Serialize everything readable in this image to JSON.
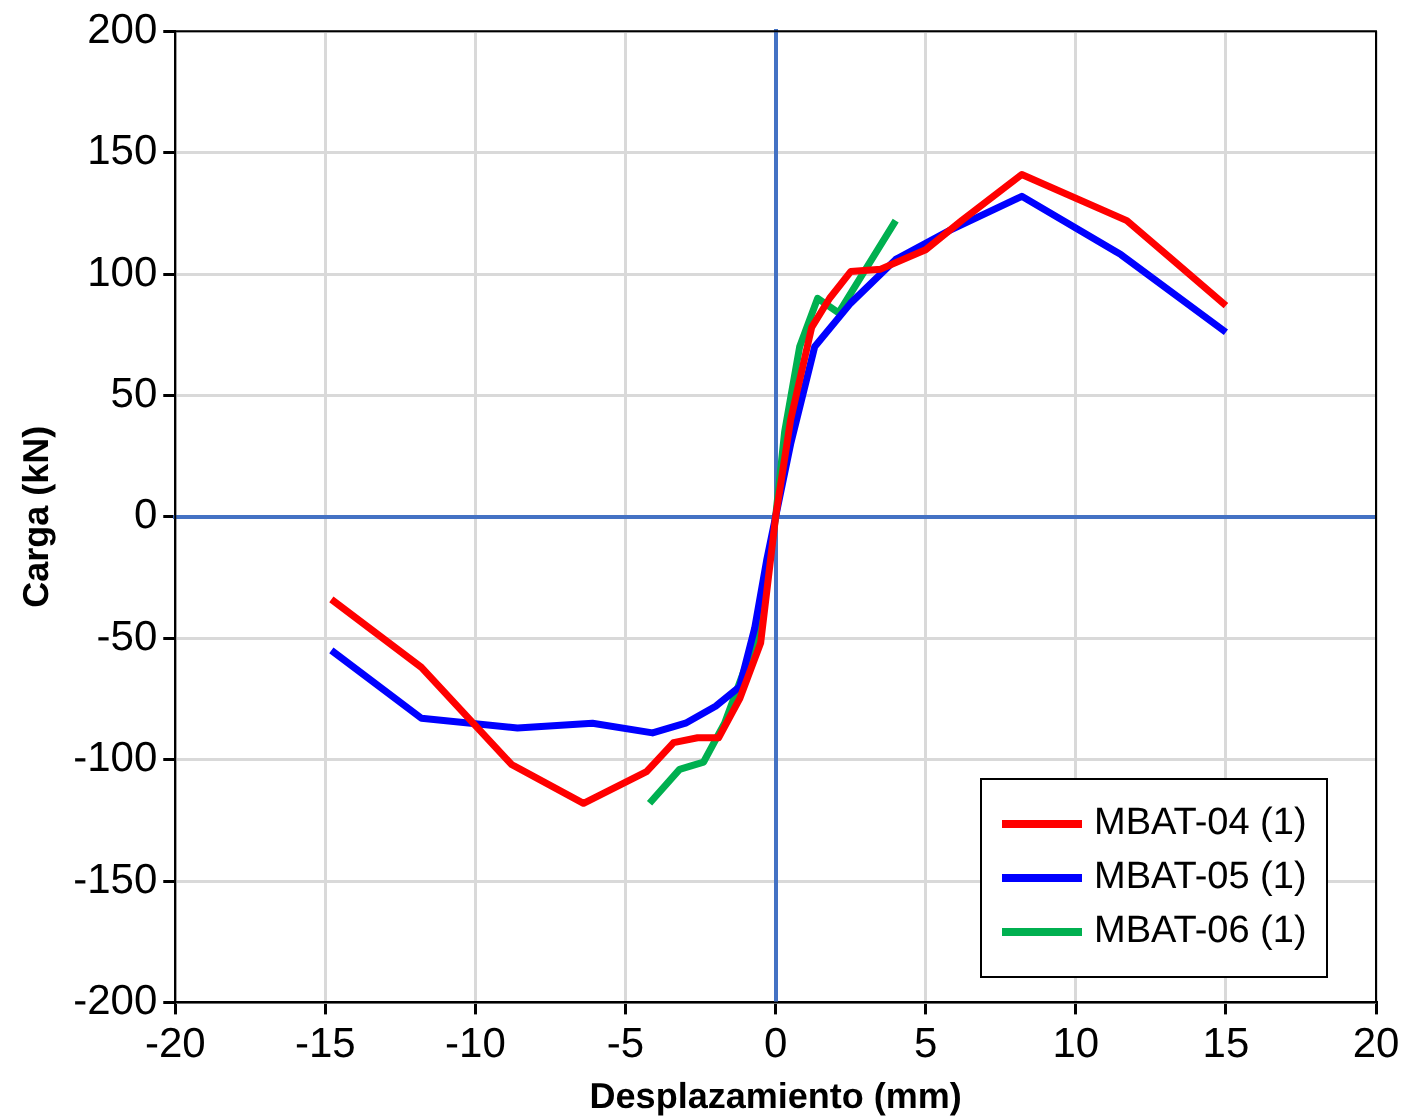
{
  "chart_data": {
    "type": "line",
    "xlabel": "Desplazamiento (mm)",
    "ylabel": "Carga (kN)",
    "xlim": [
      -20,
      20
    ],
    "xticks": [
      -20,
      -15,
      -10,
      -5,
      0,
      5,
      10,
      15,
      20
    ],
    "ylim": [
      -200,
      200
    ],
    "yticks": [
      -200,
      -150,
      -100,
      -50,
      0,
      50,
      100,
      150,
      200
    ],
    "grid": true,
    "legend": "bottom right",
    "marker": "none",
    "line_style": "solid",
    "series": [
      {
        "name": "MBAT-04 (1)",
        "color": "#ff0000",
        "x": [
          -14.8,
          -11.8,
          -8.8,
          -6.4,
          -4.3,
          -3.4,
          -2.6,
          -1.9,
          -1.2,
          -0.5,
          0,
          0.5,
          1.2,
          1.8,
          2.5,
          3.5,
          5,
          6.2,
          8.2,
          11.7,
          15
        ],
        "values": [
          -34,
          -62,
          -102,
          -118,
          -105,
          -93,
          -91,
          -91,
          -75,
          -52,
          0,
          40,
          78,
          90,
          101,
          102,
          110,
          122,
          141,
          122,
          87
        ]
      },
      {
        "name": "MBAT-05 (1)",
        "color": "#0000ff",
        "x": [
          -14.8,
          -11.8,
          -8.6,
          -6.1,
          -4.1,
          -3,
          -2,
          -1.2,
          -0.7,
          -0.3,
          0,
          0.5,
          1.3,
          2.5,
          4,
          5.8,
          8.2,
          11.5,
          15
        ],
        "values": [
          -55,
          -83,
          -87,
          -85,
          -89,
          -85,
          -78,
          -70,
          -46,
          -18,
          0,
          30,
          70,
          88,
          106,
          118,
          132,
          108,
          76
        ]
      },
      {
        "name": "MBAT-06 (1)",
        "color": "#00b050",
        "x": [
          -4.2,
          -3.2,
          -2.4,
          -1.7,
          -0.5,
          0,
          0.3,
          0.8,
          1.4,
          2.1,
          4
        ],
        "values": [
          -118,
          -104,
          -101,
          -85,
          -45,
          0,
          35,
          70,
          90,
          84,
          122
        ]
      }
    ]
  }
}
